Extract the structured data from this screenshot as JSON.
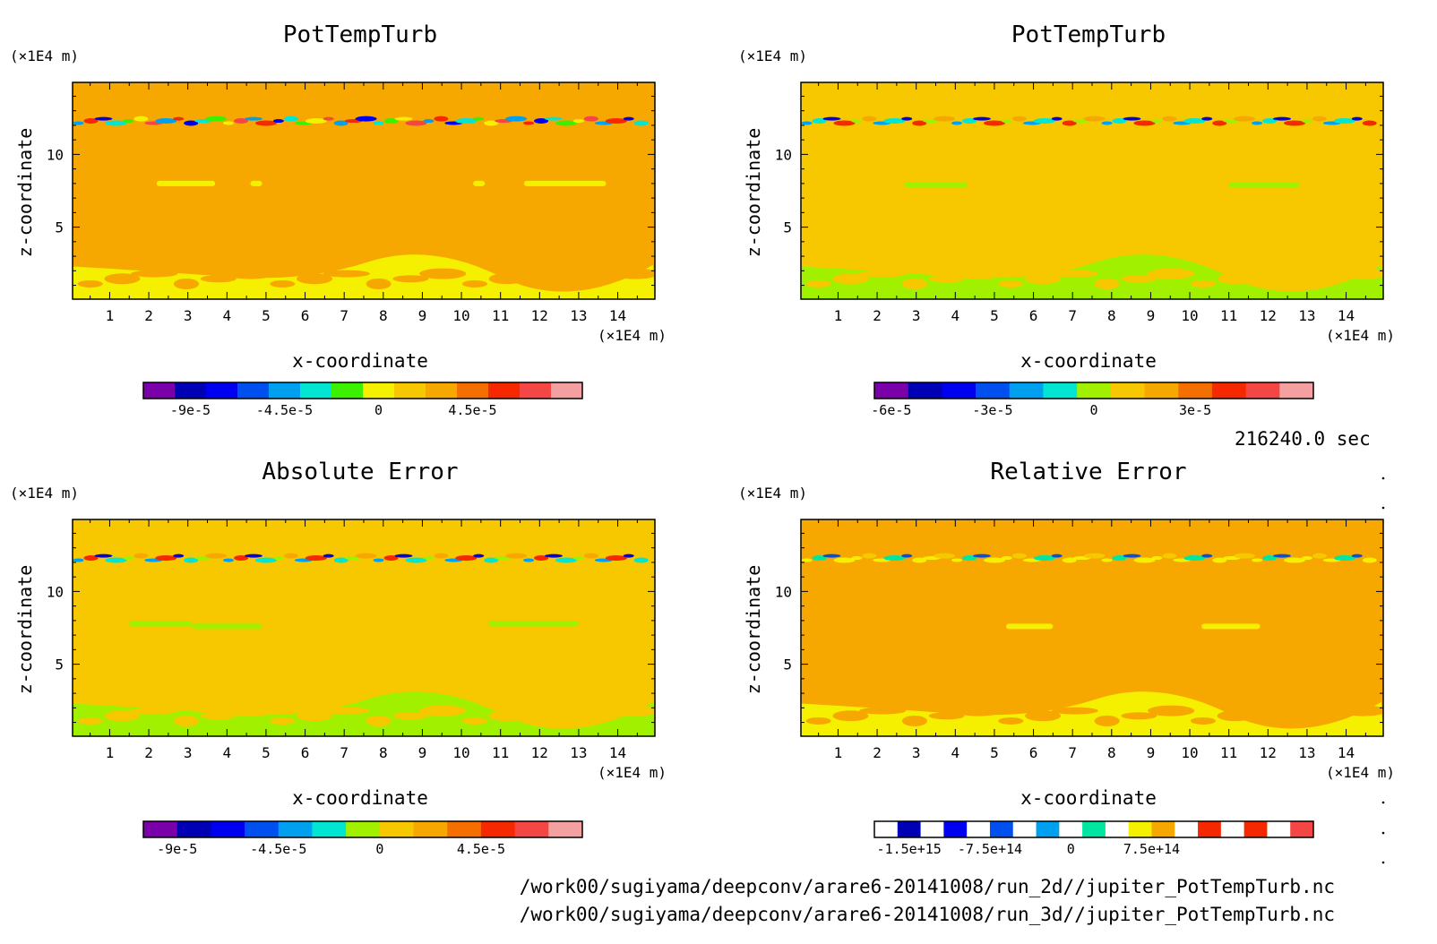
{
  "time_label": "216240.0 sec",
  "file_paths": [
    "/work00/sugiyama/deepconv/arare6-20141008/run_2d//jupiter_PotTempTurb.nc",
    "/work00/sugiyama/deepconv/arare6-20141008/run_3d//jupiter_PotTempTurb.nc"
  ],
  "chart_data": [
    {
      "type": "heatmap",
      "title": "PotTempTurb",
      "xlabel": "x-coordinate",
      "ylabel": "z-coordinate",
      "x_unit": "(×1E4 m)",
      "y_unit": "(×1E4 m)",
      "xlim": [
        0.05,
        14.95
      ],
      "ylim": [
        0.05,
        14.95
      ],
      "x_ticks": [
        "1",
        "2",
        "3",
        "4",
        "5",
        "6",
        "7",
        "8",
        "9",
        "10",
        "11",
        "12",
        "13",
        "14"
      ],
      "y_ticks": [
        "5",
        "10"
      ],
      "background": "#f7a800",
      "colorbar": {
        "colors": [
          "#7a00aa",
          "#0000b4",
          "#0000f0",
          "#0050f0",
          "#00a0f0",
          "#00e6d2",
          "#3cf000",
          "#f5f000",
          "#f7c800",
          "#f7a800",
          "#f56e00",
          "#f52800",
          "#f54646",
          "#f5a0a0"
        ],
        "tick_labels": [
          "-9e-5",
          "-4.5e-5",
          "0",
          "4.5e-5"
        ],
        "tick_positions": [
          1.5,
          4.5,
          7.5,
          10.5
        ]
      }
    },
    {
      "type": "heatmap",
      "title": "PotTempTurb",
      "xlabel": "x-coordinate",
      "ylabel": "z-coordinate",
      "x_unit": "(×1E4 m)",
      "y_unit": "(×1E4 m)",
      "xlim": [
        0.05,
        14.95
      ],
      "ylim": [
        0.05,
        14.95
      ],
      "x_ticks": [
        "1",
        "2",
        "3",
        "4",
        "5",
        "6",
        "7",
        "8",
        "9",
        "10",
        "11",
        "12",
        "13",
        "14"
      ],
      "y_ticks": [
        "5",
        "10"
      ],
      "background": "#f7c800",
      "colorbar": {
        "colors": [
          "#7a00aa",
          "#0000b4",
          "#0000f0",
          "#0050f0",
          "#00a0f0",
          "#00e6d2",
          "#a0f000",
          "#f7c800",
          "#f7a800",
          "#f56e00",
          "#f52800",
          "#f54646",
          "#f5a0a0"
        ],
        "tick_labels": [
          "-6e-5",
          "-3e-5",
          "0",
          "3e-5"
        ],
        "tick_positions": [
          0.5,
          3.5,
          6.5,
          9.5
        ]
      }
    },
    {
      "type": "heatmap",
      "title": "Absolute Error",
      "xlabel": "x-coordinate",
      "ylabel": "z-coordinate",
      "x_unit": "(×1E4 m)",
      "y_unit": "(×1E4 m)",
      "xlim": [
        0.05,
        14.95
      ],
      "ylim": [
        0.05,
        14.95
      ],
      "x_ticks": [
        "1",
        "2",
        "3",
        "4",
        "5",
        "6",
        "7",
        "8",
        "9",
        "10",
        "11",
        "12",
        "13",
        "14"
      ],
      "y_ticks": [
        "5",
        "10"
      ],
      "background": "#f7c800",
      "colorbar": {
        "colors": [
          "#7a00aa",
          "#0000b4",
          "#0000f0",
          "#0050f0",
          "#00a0f0",
          "#00e6d2",
          "#a0f000",
          "#f7c800",
          "#f7a800",
          "#f56e00",
          "#f52800",
          "#f54646",
          "#f5a0a0"
        ],
        "tick_labels": [
          "-9e-5",
          "-4.5e-5",
          "0",
          "4.5e-5"
        ],
        "tick_positions": [
          1,
          4,
          7,
          10
        ]
      }
    },
    {
      "type": "heatmap",
      "title": "Relative Error",
      "xlabel": "x-coordinate",
      "ylabel": "z-coordinate",
      "x_unit": "(×1E4 m)",
      "y_unit": "(×1E4 m)",
      "xlim": [
        0.05,
        14.95
      ],
      "ylim": [
        0.05,
        14.95
      ],
      "x_ticks": [
        "1",
        "2",
        "3",
        "4",
        "5",
        "6",
        "7",
        "8",
        "9",
        "10",
        "11",
        "12",
        "13",
        "14"
      ],
      "y_ticks": [
        "5",
        "10"
      ],
      "background": "#f7a800",
      "colorbar": {
        "colors": [
          "#ffffff",
          "#0000b4",
          "#ffffff",
          "#0000f0",
          "#ffffff",
          "#0050f0",
          "#ffffff",
          "#00a0f0",
          "#ffffff",
          "#00e6a0",
          "#ffffff",
          "#f5f000",
          "#f7a800",
          "#ffffff",
          "#f52800",
          "#ffffff",
          "#f52800",
          "#ffffff",
          "#f54646"
        ],
        "tick_labels": [
          "-1.5e+15",
          "-7.5e+14",
          "0",
          "7.5e+14"
        ],
        "tick_positions": [
          1.5,
          5,
          8.5,
          12
        ]
      }
    }
  ]
}
